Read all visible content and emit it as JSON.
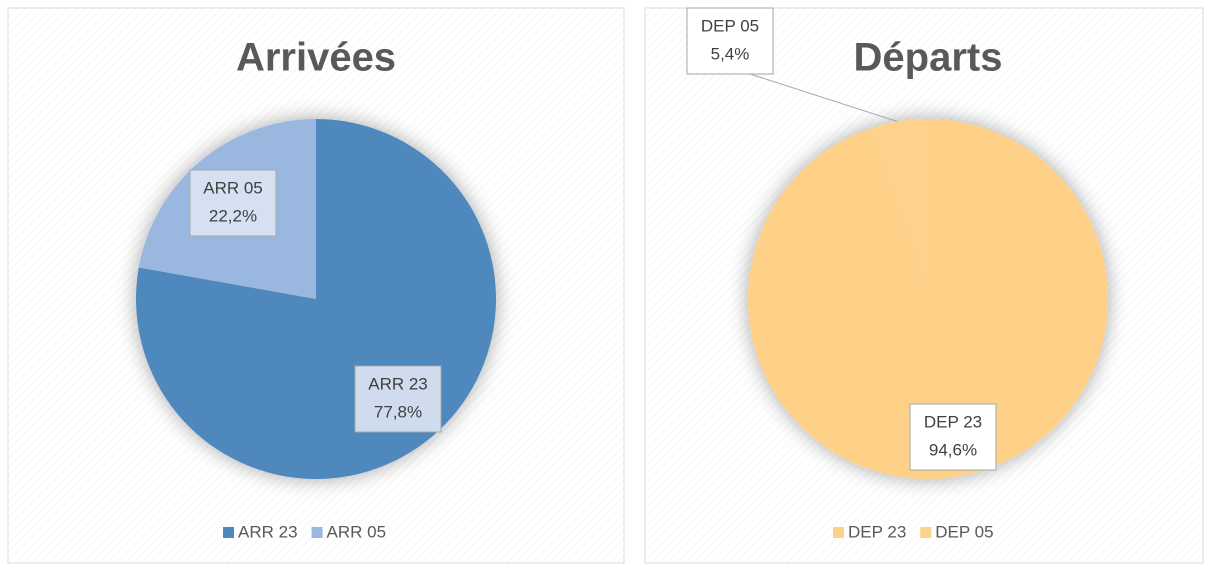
{
  "chart_data": [
    {
      "type": "pie",
      "title": "Arrivées",
      "categories": [
        "ARR 23",
        "ARR 05"
      ],
      "values": [
        77.8,
        22.2
      ],
      "value_labels": [
        "77,8%",
        "22,2%"
      ],
      "colors": [
        "#4f88bd",
        "#9ab8df"
      ],
      "legend": "bottom"
    },
    {
      "type": "pie",
      "title": "Départs",
      "categories": [
        "DEP 23",
        "DEP 05"
      ],
      "values": [
        94.6,
        5.4
      ],
      "value_labels": [
        "94,6%",
        "5,4%"
      ],
      "colors": [
        "#fed088",
        "#fed28a"
      ],
      "legend": "bottom"
    }
  ]
}
